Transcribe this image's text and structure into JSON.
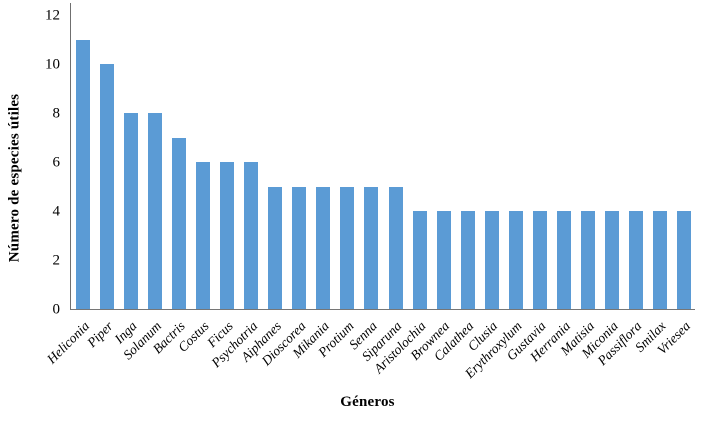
{
  "chart_data": {
    "type": "bar",
    "categories": [
      "Heliconia",
      "Piper",
      "Inga",
      "Solanum",
      "Bactris",
      "Costus",
      "Ficus",
      "Psychotria",
      "Aiphanes",
      "Dioscorea",
      "Mikania",
      "Protium",
      "Senna",
      "Siparuna",
      "Aristolochia",
      "Brownea",
      "Calathea",
      "Clusia",
      "Erythroxylum",
      "Gustavia",
      "Herrania",
      "Matisia",
      "Miconia",
      "Passiflora",
      "Smilax",
      "Vriesea"
    ],
    "values": [
      11,
      10,
      8,
      8,
      7,
      6,
      6,
      6,
      5,
      5,
      5,
      5,
      5,
      5,
      4,
      4,
      4,
      4,
      4,
      4,
      4,
      4,
      4,
      4,
      4,
      4
    ],
    "xlabel": "Géneros",
    "ylabel": "Número de especies útiles",
    "ylim": [
      0,
      12
    ],
    "yticks": [
      0,
      2,
      4,
      6,
      8,
      10,
      12
    ],
    "bar_color": "#5B9BD5",
    "grid": false,
    "legend": null
  }
}
